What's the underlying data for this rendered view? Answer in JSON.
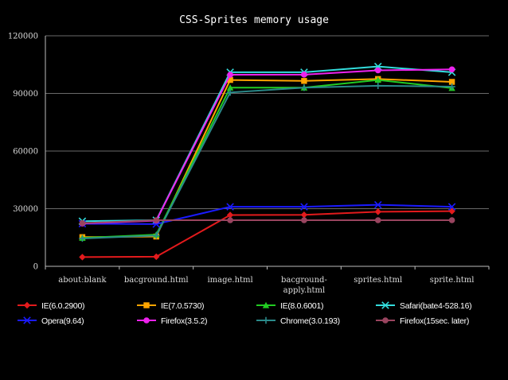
{
  "chart_data": {
    "type": "line",
    "title": "CSS-Sprites memory usage",
    "xlabel": "",
    "ylabel": "",
    "categories": [
      "about:blank",
      "bacground.html",
      "image.html",
      "bacground-apply.html",
      "sprites.html",
      "sprite.html"
    ],
    "category_lines": [
      [
        "about:blank"
      ],
      [
        "bacground.html"
      ],
      [
        "image.html"
      ],
      [
        "bacground-",
        "apply.html"
      ],
      [
        "sprites.html"
      ],
      [
        "sprite.html"
      ]
    ],
    "ylim": [
      0,
      120000
    ],
    "yticks": [
      "0",
      "30000",
      "60000",
      "90000",
      "120000"
    ],
    "ytick_values": [
      0,
      30000,
      60000,
      90000,
      120000
    ],
    "grid": true,
    "legend_position": "bottom",
    "series": [
      {
        "name": "IE(6.0.2900)",
        "color": "#e31a1c",
        "marker": "diamond",
        "values": [
          4800,
          5000,
          26700,
          26800,
          28400,
          28700
        ]
      },
      {
        "name": "IE(7.0.5730)",
        "color": "#ffa500",
        "marker": "square",
        "values": [
          15200,
          15500,
          97000,
          96500,
          97500,
          96000
        ]
      },
      {
        "name": "IE(8.0.6001)",
        "color": "#22cc22",
        "marker": "triangle",
        "values": [
          14800,
          16500,
          93000,
          93000,
          97000,
          92800
        ]
      },
      {
        "name": "Safari(bate4-528.16)",
        "color": "#33dddd",
        "marker": "x",
        "values": [
          23500,
          24000,
          101000,
          101000,
          104000,
          101000
        ]
      },
      {
        "name": "Opera(9.64)",
        "color": "#1a1aff",
        "marker": "x",
        "values": [
          22200,
          22000,
          31000,
          31000,
          32000,
          31000
        ]
      },
      {
        "name": "Firefox(3.5.2)",
        "color": "#ee22ee",
        "marker": "circle",
        "values": [
          22300,
          23800,
          99700,
          99800,
          102000,
          102500
        ]
      },
      {
        "name": "Chrome(3.0.193)",
        "color": "#2a8a8a",
        "marker": "plus",
        "values": [
          14500,
          16000,
          90500,
          93000,
          94000,
          93500
        ]
      },
      {
        "name": "Firefox(15sec. later)",
        "color": "#99445f",
        "marker": "circle",
        "values": [
          22500,
          24000,
          24000,
          24000,
          24000,
          24000
        ]
      }
    ]
  }
}
